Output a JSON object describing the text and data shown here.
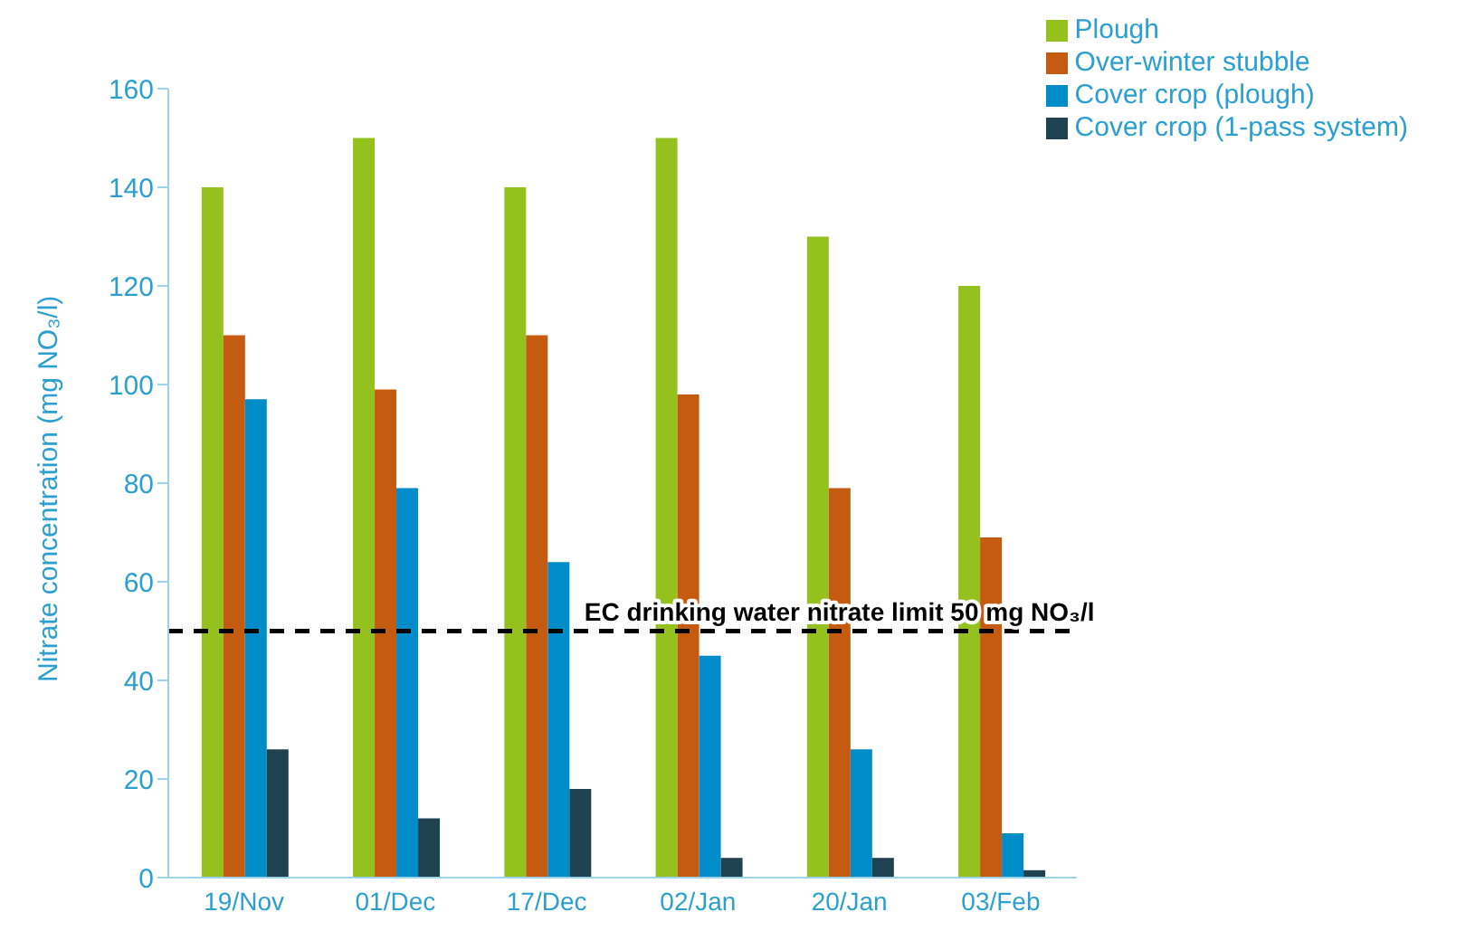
{
  "chart_data": {
    "type": "bar",
    "ylabel": "Nitrate concentration (mg NO₃/l)",
    "categories": [
      "19/Nov",
      "01/Dec",
      "17/Dec",
      "02/Jan",
      "20/Jan",
      "03/Feb"
    ],
    "series": [
      {
        "name": "Plough",
        "color": "#95c11f",
        "values": [
          140,
          150,
          140,
          150,
          130,
          120
        ]
      },
      {
        "name": "Over-winter stubble",
        "color": "#c55a11",
        "values": [
          110,
          99,
          110,
          98,
          79,
          69
        ]
      },
      {
        "name": "Cover crop (plough)",
        "color": "#008cc8",
        "values": [
          97,
          79,
          64,
          45,
          26,
          9
        ]
      },
      {
        "name": "Cover crop (1-pass system)",
        "color": "#1e4250",
        "values": [
          26,
          12,
          18,
          4,
          4,
          1.5
        ]
      }
    ],
    "ylim": [
      0,
      160
    ],
    "yticks": [
      0,
      20,
      40,
      60,
      80,
      100,
      120,
      140,
      160
    ],
    "ref_lines": [
      {
        "axis": "y",
        "value": 50,
        "label": "EC drinking water nitrate limit 50 mg NO₃/l",
        "color": "#000000",
        "line_style": "dashed"
      }
    ],
    "legend": "top right"
  }
}
